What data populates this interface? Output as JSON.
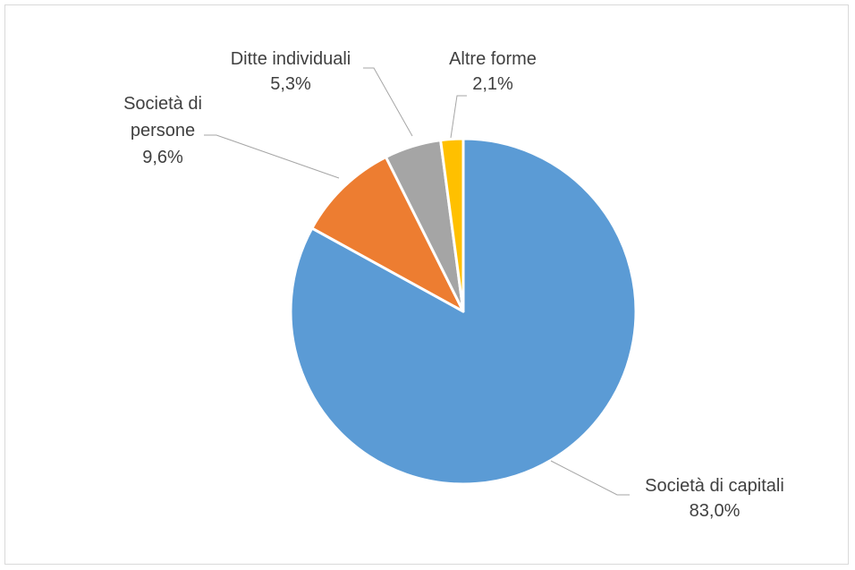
{
  "chart_data": {
    "type": "pie",
    "title": "",
    "categories": [
      "Società di capitali",
      "Società di persone",
      "Ditte individuali",
      "Altre forme"
    ],
    "values": [
      83.0,
      9.6,
      5.3,
      2.1
    ],
    "labels": [
      {
        "name_lines": [
          "Società di capitali"
        ],
        "value_text": "83,0%"
      },
      {
        "name_lines": [
          "Società di",
          "persone"
        ],
        "value_text": "9,6%"
      },
      {
        "name_lines": [
          "Ditte individuali"
        ],
        "value_text": "5,3%"
      },
      {
        "name_lines": [
          "Altre forme"
        ],
        "value_text": "2,1%"
      }
    ],
    "colors": [
      "#5b9bd5",
      "#ed7d31",
      "#a5a5a5",
      "#ffc000"
    ],
    "start_angle_deg": 0,
    "direction": "clockwise",
    "legend": "none"
  }
}
